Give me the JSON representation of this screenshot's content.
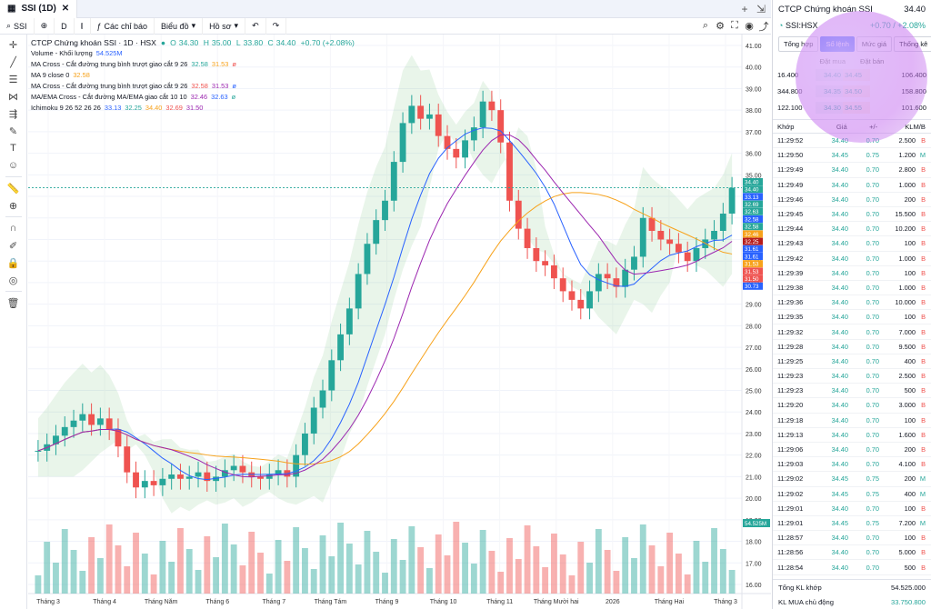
{
  "tab": {
    "title": "SSI (1D)"
  },
  "toolbar": {
    "symbol": "SSI",
    "interval": "D",
    "indicators": "Các chỉ báo",
    "chart_type": "Biểu đồ",
    "profile": "Hồ sơ"
  },
  "legend": {
    "title": "CTCP Chứng khoán SSI · 1D · HSX",
    "ohlc": {
      "o": "34.30",
      "h": "35.00",
      "l": "33.80",
      "c": "34.40",
      "chg": "+0.70 (+2.08%)"
    },
    "rows": [
      {
        "name": "Volume - Khối lượng",
        "values": [
          "54.525M"
        ]
      },
      {
        "name": "MA Cross - Cắt đường trung bình trượt giao cắt 9 26",
        "values": [
          "32.58",
          "31.53",
          "ø"
        ]
      },
      {
        "name": "MA 9 close 0",
        "values": [
          "32.58"
        ]
      },
      {
        "name": "MA Cross - Cắt đường trung bình trượt giao cắt 9 26",
        "values": [
          "32.58",
          "31.53",
          "ø"
        ]
      },
      {
        "name": "MA/EMA Cross - Cắt đường MA/EMA giao cắt 10 10",
        "values": [
          "32.46",
          "32.63",
          "ø"
        ]
      },
      {
        "name": "Ichimoku 9 26 52 26 26",
        "values": [
          "33.13",
          "32.25",
          "34.40",
          "32.69",
          "31.50"
        ]
      }
    ]
  },
  "colors": {
    "up": "#26a69a",
    "down": "#ef5350",
    "accent": "#2962ff"
  },
  "chart_data": {
    "type": "candlestick",
    "price_axis": [
      "41.00",
      "40.00",
      "39.00",
      "38.00",
      "37.00",
      "36.00",
      "35.00",
      "34.00",
      "33.00",
      "32.00",
      "31.00",
      "30.00",
      "29.00",
      "28.00",
      "27.00",
      "26.00",
      "25.00",
      "24.00",
      "23.00",
      "22.00",
      "21.00",
      "20.00",
      "19.00",
      "18.00",
      "17.00",
      "16.00"
    ],
    "time_axis": [
      "Tháng 3",
      "Tháng 4",
      "Tháng Năm",
      "Tháng 6",
      "Tháng 7",
      "Tháng Tám",
      "Tháng 9",
      "Tháng 10",
      "Tháng 11",
      "Tháng Mười hai",
      "2026",
      "Tháng Hai",
      "Tháng 3"
    ],
    "price_tags": [
      {
        "v": "34.40",
        "c": "#26a69a"
      },
      {
        "v": "34.40",
        "c": "#26a69a"
      },
      {
        "v": "33.13",
        "c": "#2962ff"
      },
      {
        "v": "32.69",
        "c": "#26a69a"
      },
      {
        "v": "32.63",
        "c": "#26a69a"
      },
      {
        "v": "32.58",
        "c": "#2962ff"
      },
      {
        "v": "32.58",
        "c": "#26a69a"
      },
      {
        "v": "32.46",
        "c": "#f7a21b"
      },
      {
        "v": "32.25",
        "c": "#b71c1c"
      },
      {
        "v": "31.61",
        "c": "#2962ff"
      },
      {
        "v": "31.61",
        "c": "#2962ff"
      },
      {
        "v": "31.53",
        "c": "#f7a21b"
      },
      {
        "v": "31.53",
        "c": "#ef5350"
      },
      {
        "v": "31.50",
        "c": "#ef5350"
      },
      {
        "v": "30.73",
        "c": "#2962ff"
      }
    ],
    "volume_tag": "54.525M",
    "close_series": [
      22.2,
      22.5,
      22.9,
      23.3,
      23.6,
      23.9,
      23.4,
      23.7,
      23.2,
      22.4,
      21.2,
      20.5,
      20.8,
      20.6,
      20.9,
      21.1,
      20.9,
      21.0,
      21.2,
      20.8,
      21.0,
      21.3,
      21.5,
      21.2,
      21.0,
      20.9,
      21.1,
      21.3,
      21.0,
      22.0,
      23.0,
      24.2,
      25.0,
      26.4,
      27.6,
      28.8,
      30.4,
      31.8,
      32.9,
      33.8,
      35.6,
      37.4,
      38.2,
      37.6,
      37.8,
      36.8,
      36.2,
      35.8,
      36.6,
      37.2,
      38.4,
      38.0,
      36.5,
      33.8,
      32.5,
      31.6,
      31.0,
      30.8,
      30.2,
      29.6,
      29.2,
      28.8,
      29.6,
      30.4,
      30.2,
      29.8,
      30.6,
      31.2,
      33.0,
      32.4,
      32.0,
      31.8,
      31.4,
      31.0,
      31.6,
      32.0,
      32.4,
      33.2,
      34.4
    ]
  },
  "right_panel": {
    "title": "CTCP Chứng khoán SSI",
    "last": "34.40",
    "symbol": "SSI:HSX",
    "change": "+0.70 / +2.08%",
    "tabs": [
      "Tổng hợp",
      "Sổ lệnh",
      "Mức giá",
      "Thống kê"
    ],
    "bid_label": "Đặt mua",
    "ask_label": "Đặt bán",
    "book": [
      {
        "bv": "16.400",
        "bp": "34.40",
        "ap": "34.45",
        "av": "106.400"
      },
      {
        "bv": "344.800",
        "bp": "34.35",
        "ap": "34.50",
        "av": "158.800"
      },
      {
        "bv": "122.100",
        "bp": "34.30",
        "ap": "34.55",
        "av": "101.600"
      }
    ],
    "trade_headers": [
      "Khớp",
      "Giá",
      "+/-",
      "KL",
      "M/B"
    ],
    "trades": [
      [
        "11:29:52",
        "34.40",
        "0.70",
        "2.500",
        "B"
      ],
      [
        "11:29:50",
        "34.45",
        "0.75",
        "1.200",
        "M"
      ],
      [
        "11:29:49",
        "34.40",
        "0.70",
        "2.800",
        "B"
      ],
      [
        "11:29:49",
        "34.40",
        "0.70",
        "1.000",
        "B"
      ],
      [
        "11:29:46",
        "34.40",
        "0.70",
        "200",
        "B"
      ],
      [
        "11:29:45",
        "34.40",
        "0.70",
        "15.500",
        "B"
      ],
      [
        "11:29:44",
        "34.40",
        "0.70",
        "10.200",
        "B"
      ],
      [
        "11:29:43",
        "34.40",
        "0.70",
        "100",
        "B"
      ],
      [
        "11:29:42",
        "34.40",
        "0.70",
        "1.000",
        "B"
      ],
      [
        "11:29:39",
        "34.40",
        "0.70",
        "100",
        "B"
      ],
      [
        "11:29:38",
        "34.40",
        "0.70",
        "1.000",
        "B"
      ],
      [
        "11:29:36",
        "34.40",
        "0.70",
        "10.000",
        "B"
      ],
      [
        "11:29:35",
        "34.40",
        "0.70",
        "100",
        "B"
      ],
      [
        "11:29:32",
        "34.40",
        "0.70",
        "7.000",
        "B"
      ],
      [
        "11:29:28",
        "34.40",
        "0.70",
        "9.500",
        "B"
      ],
      [
        "11:29:25",
        "34.40",
        "0.70",
        "400",
        "B"
      ],
      [
        "11:29:23",
        "34.40",
        "0.70",
        "2.500",
        "B"
      ],
      [
        "11:29:23",
        "34.40",
        "0.70",
        "500",
        "B"
      ],
      [
        "11:29:20",
        "34.40",
        "0.70",
        "3.000",
        "B"
      ],
      [
        "11:29:18",
        "34.40",
        "0.70",
        "100",
        "B"
      ],
      [
        "11:29:13",
        "34.40",
        "0.70",
        "1.600",
        "B"
      ],
      [
        "11:29:06",
        "34.40",
        "0.70",
        "200",
        "B"
      ],
      [
        "11:29:03",
        "34.40",
        "0.70",
        "4.100",
        "B"
      ],
      [
        "11:29:02",
        "34.45",
        "0.75",
        "200",
        "M"
      ],
      [
        "11:29:02",
        "34.45",
        "0.75",
        "400",
        "M"
      ],
      [
        "11:29:01",
        "34.40",
        "0.70",
        "100",
        "B"
      ],
      [
        "11:29:01",
        "34.45",
        "0.75",
        "7.200",
        "M"
      ],
      [
        "11:28:57",
        "34.40",
        "0.70",
        "100",
        "B"
      ],
      [
        "11:28:56",
        "34.40",
        "0.70",
        "5.000",
        "B"
      ],
      [
        "11:28:54",
        "34.40",
        "0.70",
        "500",
        "B"
      ]
    ],
    "total_label": "Tổng KL khớp",
    "total_value": "54.525.000",
    "active_label": "KL MUA chủ động",
    "active_value": "33.750.800"
  }
}
